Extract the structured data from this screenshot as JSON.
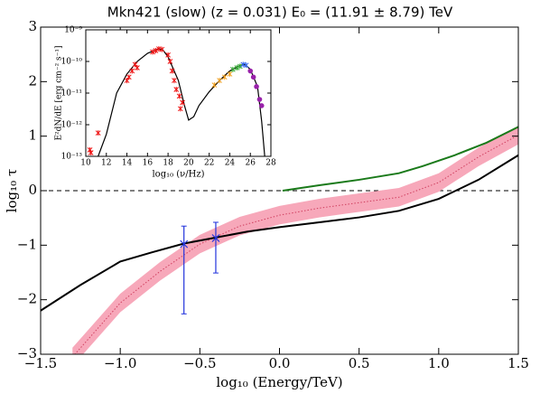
{
  "chart_data": [
    {
      "type": "line",
      "title": "Mkn421 (slow) (z = 0.031) E₀ = (11.91 ± 8.79) TeV",
      "xlabel": "log₁₀ (Energy/TeV)",
      "ylabel": "log₁₀ τ",
      "xlim": [
        -1.5,
        1.5
      ],
      "xticks": [
        {
          "value": -1.5,
          "label": "−1.5"
        },
        {
          "value": -1.0,
          "label": "−1.0"
        },
        {
          "value": -0.5,
          "label": "−0.5"
        },
        {
          "value": 0.0,
          "label": "0.0"
        },
        0.5,
        {
          "value": 1.0,
          "label": "1.0"
        },
        1.5
      ],
      "ylim": [
        -3,
        3
      ],
      "yticks": [
        {
          "value": -3,
          "label": "−3"
        },
        {
          "value": -2,
          "label": "−2"
        },
        {
          "value": -1,
          "label": "−1"
        },
        0,
        1,
        2,
        3
      ],
      "hline": 0,
      "series": [
        {
          "kind": "band",
          "color": "#f7a8ba",
          "line_color": "#d04060",
          "x": [
            -1.3,
            -1.0,
            -0.75,
            -0.5,
            -0.25,
            0,
            0.25,
            0.5,
            0.75,
            1.0,
            1.25,
            1.5
          ],
          "values": [
            -3.05,
            -2.06,
            -1.48,
            -0.98,
            -0.65,
            -0.45,
            -0.32,
            -0.22,
            -0.12,
            0.15,
            0.62,
            1.02
          ],
          "lower": [
            -3.22,
            -2.23,
            -1.65,
            -1.15,
            -0.82,
            -0.62,
            -0.49,
            -0.39,
            -0.29,
            -0.02,
            0.45,
            0.85
          ],
          "upper": [
            -2.88,
            -1.89,
            -1.31,
            -0.81,
            -0.48,
            -0.28,
            -0.15,
            -0.05,
            0.05,
            0.32,
            0.79,
            1.19
          ]
        },
        {
          "kind": "line",
          "color": "#000000",
          "x": [
            -1.5,
            -1.25,
            -1.0,
            -0.8,
            -0.6,
            -0.4,
            -0.2,
            0,
            0.25,
            0.5,
            0.75,
            1.0,
            1.25,
            1.5
          ],
          "values": [
            -2.2,
            -1.73,
            -1.3,
            -1.13,
            -0.97,
            -0.86,
            -0.75,
            -0.67,
            -0.58,
            -0.49,
            -0.37,
            -0.15,
            0.2,
            0.65
          ]
        },
        {
          "kind": "line",
          "color": "#1a7a1a",
          "x": [
            0.02,
            0.25,
            0.5,
            0.75,
            0.9,
            1.1,
            1.3,
            1.5
          ],
          "values": [
            0.0,
            0.1,
            0.2,
            0.32,
            0.45,
            0.65,
            0.88,
            1.17
          ]
        },
        {
          "kind": "errorbar",
          "color": "#2233dd",
          "x": [
            -0.6,
            -0.4
          ],
          "values": [
            -0.98,
            -0.87
          ],
          "err_low": [
            1.28,
            0.64
          ],
          "err_high": [
            0.33,
            0.29
          ]
        }
      ]
    },
    {
      "type": "scatter",
      "xlabel": "log₁₀ (ν/Hz)",
      "ylabel": "E²dN/dE [erg cm⁻² s⁻¹]",
      "xlim": [
        10,
        28
      ],
      "xticks": [
        10,
        12,
        14,
        16,
        18,
        20,
        22,
        24,
        26,
        28
      ],
      "ylim": [
        1e-13,
        1e-09
      ],
      "ylog": true,
      "yticks": [
        {
          "value": 1e-13,
          "label": "10⁻¹³"
        },
        {
          "value": 1e-12,
          "label": "10⁻¹²"
        },
        {
          "value": 1e-11,
          "label": "10⁻¹¹"
        },
        {
          "value": 1e-10,
          "label": "10⁻¹⁰"
        },
        {
          "value": 1e-09,
          "label": "10⁻⁹"
        }
      ],
      "series": [
        {
          "kind": "line",
          "color": "#000000",
          "x": [
            11.2,
            12,
            13,
            14,
            15,
            16,
            17,
            17.5,
            18,
            19,
            19.6,
            20,
            20.5,
            21,
            22,
            23,
            24,
            25,
            25.5,
            26,
            26.7,
            27.1,
            27.4
          ],
          "values": [
            1e-13,
            5e-13,
            1e-11,
            4e-11,
            1e-10,
            1.8e-10,
            2.5e-10,
            2.3e-10,
            1.4e-10,
            2.5e-11,
            4e-12,
            1.4e-12,
            1.8e-12,
            4e-12,
            1.1e-11,
            2.5e-11,
            5e-11,
            7.6e-11,
            8e-11,
            5.6e-11,
            1.6e-11,
            1.3e-12,
            1e-13
          ]
        },
        {
          "kind": "scatter",
          "color": "#ee1111",
          "x": [
            10.4,
            10.5,
            11.2,
            14.0,
            14.2,
            14.5,
            14.8,
            15.0,
            16.5,
            16.8,
            17.1,
            17.4,
            18.0,
            18.2,
            18.4,
            18.6,
            18.8,
            19.1,
            19.2,
            19.4
          ],
          "values": [
            1.6e-13,
            1.3e-13,
            5.5e-13,
            2.5e-11,
            3.2e-11,
            5e-11,
            8e-11,
            6.3e-11,
            2e-10,
            2.2e-10,
            2.5e-10,
            2.4e-10,
            1.6e-10,
            1e-10,
            5e-11,
            2.5e-11,
            1.3e-11,
            8e-12,
            3.2e-12,
            5e-12
          ]
        },
        {
          "kind": "scatter",
          "color": "#f0a020",
          "x": [
            22.5,
            23.0,
            23.5,
            24.0
          ],
          "values": [
            1.8e-11,
            2.5e-11,
            3.2e-11,
            4e-11
          ]
        },
        {
          "kind": "scatter",
          "color": "#33aa33",
          "x": [
            24.3,
            24.7,
            25.0
          ],
          "values": [
            5.6e-11,
            6.3e-11,
            7e-11
          ]
        },
        {
          "kind": "scatter",
          "color": "#3366ee",
          "x": [
            25.3,
            25.6
          ],
          "values": [
            8e-11,
            7.6e-11
          ]
        },
        {
          "kind": "scatter",
          "color": "#9922aa",
          "x": [
            26.0,
            26.3,
            26.6,
            26.9,
            27.1
          ],
          "values": [
            5e-11,
            3.2e-11,
            1.6e-11,
            6.3e-12,
            4e-12
          ]
        }
      ]
    }
  ]
}
